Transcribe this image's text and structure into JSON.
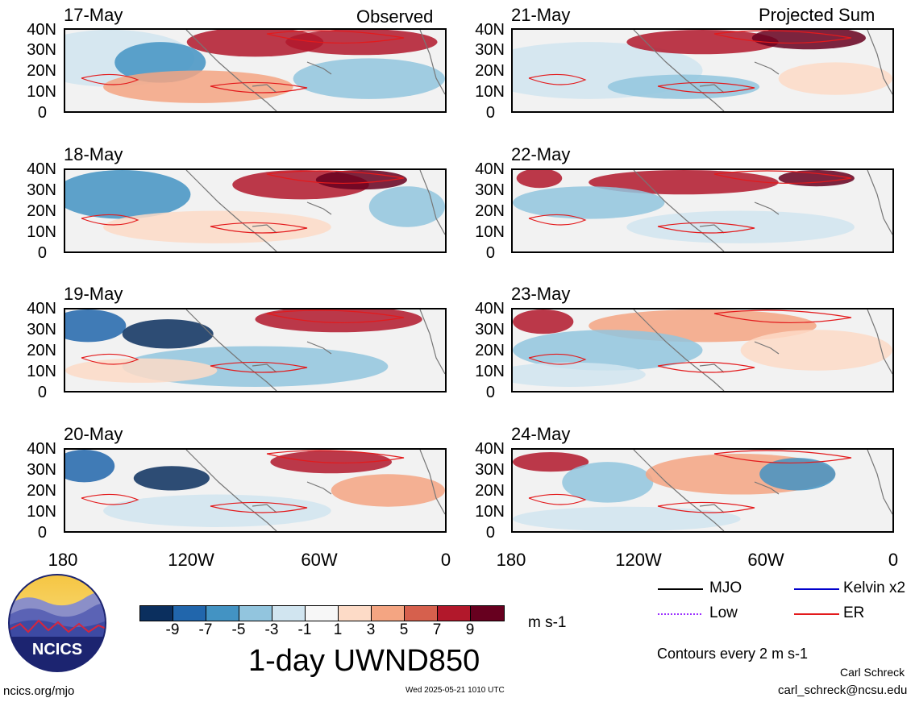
{
  "panels": [
    {
      "date": "17-May",
      "corner": "Observed",
      "side": "left",
      "row": 0
    },
    {
      "date": "18-May",
      "corner": "",
      "side": "left",
      "row": 1
    },
    {
      "date": "19-May",
      "corner": "",
      "side": "left",
      "row": 2
    },
    {
      "date": "20-May",
      "corner": "",
      "side": "left",
      "row": 3
    },
    {
      "date": "21-May",
      "corner": "Projected Sum",
      "side": "right",
      "row": 0
    },
    {
      "date": "22-May",
      "corner": "",
      "side": "right",
      "row": 1
    },
    {
      "date": "23-May",
      "corner": "",
      "side": "right",
      "row": 2
    },
    {
      "date": "24-May",
      "corner": "",
      "side": "right",
      "row": 3
    }
  ],
  "latitude_labels": [
    "40N",
    "30N",
    "20N",
    "10N",
    "0"
  ],
  "longitude_labels": [
    "180",
    "120W",
    "60W",
    "0"
  ],
  "colorbar": {
    "colors": [
      "#0b2f5e",
      "#2166ac",
      "#4393c3",
      "#92c5de",
      "#d1e5f0",
      "#f7f7f7",
      "#fddbc7",
      "#f4a582",
      "#d6604d",
      "#b2182b",
      "#67001f"
    ],
    "ticks": [
      "-9",
      "-7",
      "-5",
      "-3",
      "-1",
      "1",
      "3",
      "5",
      "7",
      "9"
    ],
    "units": "m s-1"
  },
  "title": "1-day UWND850",
  "legend": {
    "items": [
      {
        "label": "MJO",
        "color": "#000000",
        "style": "solid"
      },
      {
        "label": "Kelvin x2",
        "color": "#0000cc",
        "style": "solid"
      },
      {
        "label": "Low",
        "color": "#9b30ff",
        "style": "dotted"
      },
      {
        "label": "ER",
        "color": "#e31a1c",
        "style": "solid"
      }
    ],
    "contour_note": "Contours every 2 m s-1"
  },
  "logo": {
    "text": "NCICS"
  },
  "footer": {
    "url": "ncics.org/mjo",
    "timestamp": "Wed 2025-05-21 1010 UTC",
    "author": "Carl Schreck",
    "email": "carl_schreck@ncsu.edu"
  }
}
